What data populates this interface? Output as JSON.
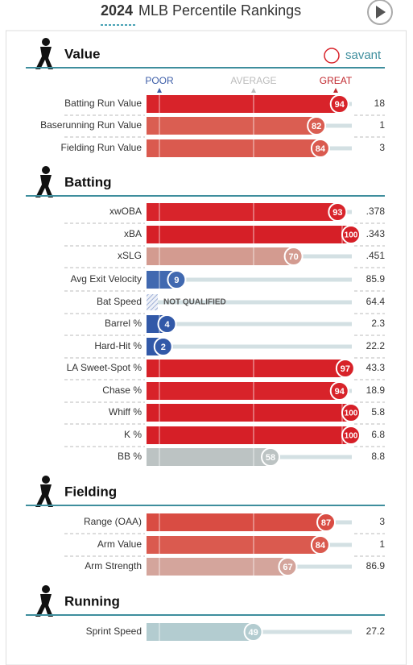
{
  "header": {
    "year": "2024",
    "title": "MLB Percentile Rankings",
    "brand": "savant"
  },
  "scale": {
    "poor": "POOR",
    "average": "AVERAGE",
    "great": "GREAT"
  },
  "sections": [
    {
      "title": "Value",
      "rows": [
        {
          "label": "Batting Run Value",
          "percentile": 94,
          "value": "18",
          "color": "#d8232a"
        },
        {
          "label": "Baserunning Run Value",
          "percentile": 82,
          "value": "1",
          "color": "#da5e52"
        },
        {
          "label": "Fielding Run Value",
          "percentile": 84,
          "value": "3",
          "color": "#da5a4f"
        }
      ]
    },
    {
      "title": "Batting",
      "rows": [
        {
          "label": "xwOBA",
          "percentile": 93,
          "value": ".378",
          "color": "#d8242b"
        },
        {
          "label": "xBA",
          "percentile": 100,
          "value": ".343",
          "color": "#d61f27"
        },
        {
          "label": "xSLG",
          "percentile": 70,
          "value": ".451",
          "color": "#d39b90"
        },
        {
          "label": "Avg Exit Velocity",
          "percentile": 9,
          "value": "85.9",
          "color": "#4169b0"
        },
        {
          "label": "Bat Speed",
          "percentile": null,
          "note": "NOT QUALIFIED",
          "value": "64.4",
          "color": "#c9d3e8"
        },
        {
          "label": "Barrel %",
          "percentile": 4,
          "value": "2.3",
          "color": "#3259a8"
        },
        {
          "label": "Hard-Hit %",
          "percentile": 2,
          "value": "22.2",
          "color": "#3259a8"
        },
        {
          "label": "LA Sweet-Spot %",
          "percentile": 97,
          "value": "43.3",
          "color": "#d72128"
        },
        {
          "label": "Chase %",
          "percentile": 94,
          "value": "18.9",
          "color": "#d8232a"
        },
        {
          "label": "Whiff %",
          "percentile": 100,
          "value": "5.8",
          "color": "#d61f27"
        },
        {
          "label": "K %",
          "percentile": 100,
          "value": "6.8",
          "color": "#d61f27"
        },
        {
          "label": "BB %",
          "percentile": 58,
          "value": "8.8",
          "color": "#bcc3c3"
        }
      ]
    },
    {
      "title": "Fielding",
      "rows": [
        {
          "label": "Range (OAA)",
          "percentile": 87,
          "value": "3",
          "color": "#d94c43"
        },
        {
          "label": "Arm Value",
          "percentile": 84,
          "value": "1",
          "color": "#da5a4f"
        },
        {
          "label": "Arm Strength",
          "percentile": 67,
          "value": "86.9",
          "color": "#d4a59c"
        }
      ]
    },
    {
      "title": "Running",
      "rows": [
        {
          "label": "Sprint Speed",
          "percentile": 49,
          "value": "27.2",
          "color": "#b3ccd0"
        }
      ]
    }
  ]
}
